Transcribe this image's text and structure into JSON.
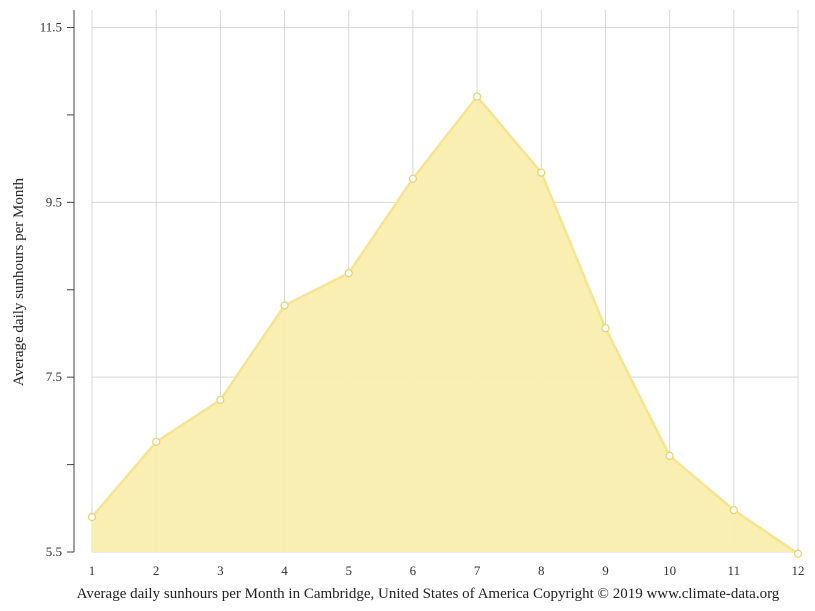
{
  "chart_data": {
    "type": "area",
    "title": "",
    "xlabel": "Average daily sunhours per Month in Cambridge, United States of America Copyright © 2019 www.climate-data.org",
    "ylabel": "Average daily sunhours per Month",
    "x": [
      1,
      2,
      3,
      4,
      5,
      6,
      7,
      8,
      9,
      10,
      11,
      12
    ],
    "series": [
      {
        "values": [
          5.9,
          6.76,
          7.24,
          8.32,
          8.69,
          9.77,
          10.71,
          9.84,
          8.06,
          6.6,
          5.98,
          5.48
        ]
      }
    ],
    "xlim": [
      1,
      12
    ],
    "ylim": [
      5.5,
      11.7
    ],
    "yticks": [
      5.5,
      7.5,
      9.5,
      11.5
    ],
    "ytick_labels": [
      "5.5",
      "7.5",
      "9.5",
      "11.5"
    ],
    "xtick_labels": [
      "1",
      "2",
      "3",
      "4",
      "5",
      "6",
      "7",
      "8",
      "9",
      "10",
      "11",
      "12"
    ],
    "grid": true,
    "legend": "none",
    "colors": {
      "fill": "#f9eeae",
      "line": "#f7e48c",
      "marker_fill": "#ffffff",
      "grid": "#d8d8d8",
      "axis": "#444444"
    }
  }
}
